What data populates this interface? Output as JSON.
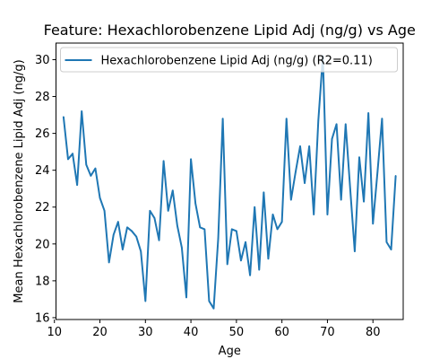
{
  "chart_data": {
    "type": "line",
    "title": "Feature: Hexachlorobenzene Lipid Adj (ng/g) vs Age",
    "xlabel": "Age",
    "ylabel": "Mean Hexachlorobenzene Lipid Adj (ng/g)",
    "xlim": [
      10.35,
      86.65
    ],
    "ylim": [
      15.9,
      30.9
    ],
    "xticks": [
      10,
      20,
      30,
      40,
      50,
      60,
      70,
      80
    ],
    "yticks": [
      16,
      18,
      20,
      22,
      24,
      26,
      28,
      30
    ],
    "grid": false,
    "legend_position": "top-left",
    "colors": {
      "series": "#1f77b4"
    },
    "series": [
      {
        "name": "Hexachlorobenzene Lipid Adj (ng/g) (R2=0.11)",
        "x": [
          12,
          13,
          14,
          15,
          16,
          17,
          18,
          19,
          20,
          21,
          22,
          23,
          24,
          25,
          26,
          27,
          28,
          29,
          30,
          31,
          32,
          33,
          34,
          35,
          36,
          37,
          38,
          39,
          40,
          41,
          42,
          43,
          44,
          45,
          46,
          47,
          48,
          49,
          50,
          51,
          52,
          53,
          54,
          55,
          56,
          57,
          58,
          59,
          60,
          61,
          62,
          63,
          64,
          65,
          66,
          67,
          68,
          69,
          70,
          71,
          72,
          73,
          74,
          75,
          76,
          77,
          78,
          79,
          80,
          81,
          82,
          83,
          84,
          85
        ],
        "y": [
          26.9,
          24.6,
          24.9,
          23.2,
          27.2,
          24.3,
          23.7,
          24.1,
          22.5,
          21.8,
          19.0,
          20.5,
          21.2,
          19.7,
          20.9,
          20.7,
          20.4,
          19.6,
          16.9,
          21.8,
          21.4,
          20.2,
          24.5,
          21.8,
          22.9,
          21.0,
          19.8,
          17.1,
          24.6,
          22.2,
          20.9,
          20.8,
          16.9,
          16.5,
          20.3,
          26.8,
          18.9,
          20.8,
          20.7,
          19.1,
          20.1,
          18.3,
          22.0,
          18.6,
          22.8,
          19.2,
          21.6,
          20.8,
          21.2,
          26.8,
          22.4,
          23.9,
          25.3,
          23.3,
          25.3,
          21.6,
          26.7,
          30.2,
          21.6,
          25.7,
          26.5,
          22.4,
          26.5,
          23.0,
          19.6,
          24.7,
          22.3,
          27.1,
          21.1,
          23.9,
          26.8,
          20.1,
          19.7,
          23.7
        ]
      }
    ]
  }
}
